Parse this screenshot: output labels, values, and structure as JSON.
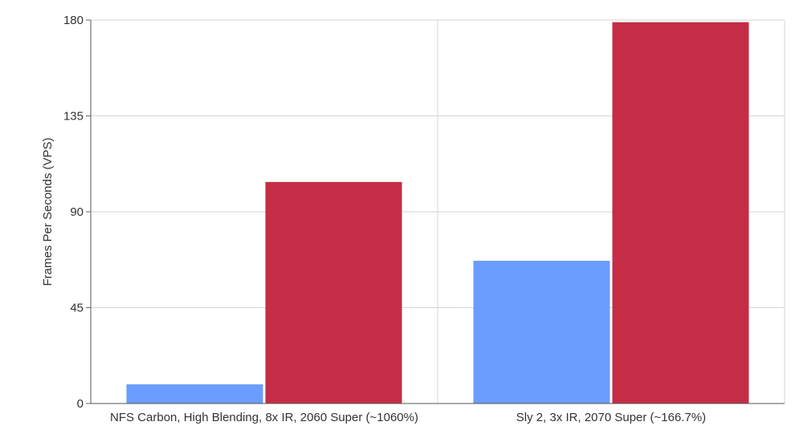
{
  "chart_data": {
    "type": "bar",
    "title": "",
    "xlabel": "",
    "ylabel": "Frames Per Seconds (VPS)",
    "ylim": [
      0,
      180
    ],
    "yticks": [
      "0",
      "45",
      "90",
      "135",
      "180"
    ],
    "grid": true,
    "legend": "none",
    "categories": [
      "NFS Carbon, High Blending, 8x IR, 2060 Super (~1060%)",
      "Sly 2, 3x IR, 2070 Super (~166.7%)"
    ],
    "series": [
      {
        "color": "#6b9cff",
        "values": [
          9,
          67
        ]
      },
      {
        "color": "#c42d45",
        "values": [
          104,
          179
        ]
      }
    ]
  }
}
